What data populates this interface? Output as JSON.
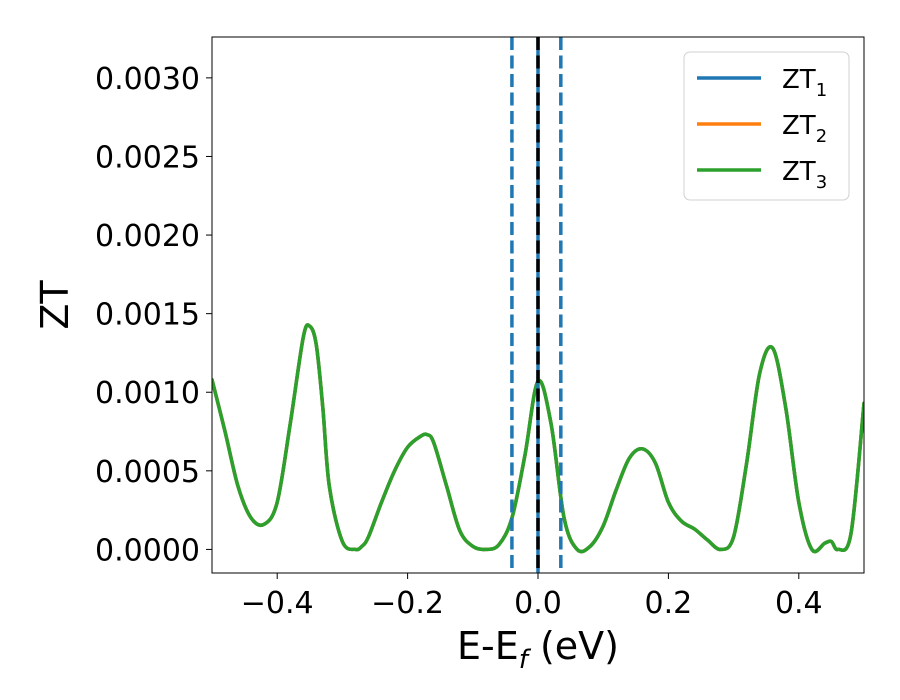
{
  "chart_data": {
    "type": "line",
    "xlabel": "E-E",
    "xlabel_sub": "f",
    "xlabel_unit": " (eV)",
    "ylabel": "ZT",
    "xlim": [
      -0.5,
      0.5
    ],
    "ylim": [
      -0.00015,
      0.00326
    ],
    "xticks": [
      -0.4,
      -0.2,
      0.0,
      0.2,
      0.4
    ],
    "xtick_labels": [
      "−0.4",
      "−0.2",
      "0.0",
      "0.2",
      "0.4"
    ],
    "yticks": [
      0.0,
      0.0005,
      0.001,
      0.0015,
      0.002,
      0.0025,
      0.003
    ],
    "ytick_labels": [
      "0.0000",
      "0.0005",
      "0.0010",
      "0.0015",
      "0.0020",
      "0.0025",
      "0.0030"
    ],
    "grid": false,
    "legend_position": "top-right",
    "vlines": [
      {
        "x": -0.04,
        "style": "dashed",
        "color": "#1f77b4"
      },
      {
        "x": 0.035,
        "style": "dashed",
        "color": "#1f77b4"
      },
      {
        "x": 0.0,
        "style": "solid",
        "color": "#1f77b4"
      },
      {
        "x": 0.0,
        "style": "dashed",
        "color": "#000000"
      }
    ],
    "series": [
      {
        "name": "ZT",
        "sub": "1",
        "color": "#1f77b4",
        "x": [
          -0.5,
          -0.48,
          -0.46,
          -0.44,
          -0.42,
          -0.4,
          -0.38,
          -0.36,
          -0.35,
          -0.34,
          -0.33,
          -0.32,
          -0.3,
          -0.28,
          -0.27,
          -0.26,
          -0.24,
          -0.22,
          -0.2,
          -0.18,
          -0.17,
          -0.16,
          -0.14,
          -0.12,
          -0.1,
          -0.08,
          -0.06,
          -0.04,
          -0.02,
          0.0,
          0.02,
          0.04,
          0.06,
          0.08,
          0.1,
          0.12,
          0.14,
          0.16,
          0.18,
          0.2,
          0.22,
          0.24,
          0.26,
          0.28,
          0.3,
          0.32,
          0.34,
          0.36,
          0.38,
          0.4,
          0.42,
          0.44,
          0.45,
          0.46,
          0.48,
          0.5
        ],
        "y": [
          0.00108,
          0.00075,
          0.0004,
          0.0002,
          0.00016,
          0.0003,
          0.0008,
          0.00135,
          0.00142,
          0.0013,
          0.0009,
          0.0004,
          5e-05,
          0.0,
          2e-05,
          8e-05,
          0.0003,
          0.0005,
          0.00065,
          0.00072,
          0.00073,
          0.00068,
          0.0004,
          0.00012,
          2e-05,
          0.0,
          3e-05,
          0.0002,
          0.0006,
          0.00107,
          0.0008,
          0.0002,
          0.0,
          2e-05,
          0.00015,
          0.00038,
          0.00058,
          0.00064,
          0.00055,
          0.0003,
          0.00018,
          0.00013,
          6e-05,
          0.0,
          8e-05,
          0.00055,
          0.00112,
          0.00128,
          0.0009,
          0.0003,
          0.0,
          4e-05,
          5e-05,
          0.0,
          0.0001,
          0.00093
        ]
      },
      {
        "name": "ZT",
        "sub": "2",
        "color": "#ff7f0e",
        "x": [
          -0.5,
          -0.48,
          -0.46,
          -0.44,
          -0.42,
          -0.4,
          -0.38,
          -0.36,
          -0.35,
          -0.34,
          -0.33,
          -0.32,
          -0.3,
          -0.28,
          -0.27,
          -0.26,
          -0.24,
          -0.22,
          -0.2,
          -0.18,
          -0.17,
          -0.16,
          -0.14,
          -0.12,
          -0.1,
          -0.08,
          -0.06,
          -0.04,
          -0.02,
          0.0,
          0.02,
          0.04,
          0.06,
          0.08,
          0.1,
          0.12,
          0.14,
          0.16,
          0.18,
          0.2,
          0.22,
          0.24,
          0.26,
          0.28,
          0.3,
          0.32,
          0.34,
          0.36,
          0.38,
          0.4,
          0.42,
          0.44,
          0.45,
          0.46,
          0.48,
          0.5
        ],
        "y": [
          0.00108,
          0.00075,
          0.0004,
          0.0002,
          0.00016,
          0.0003,
          0.0008,
          0.00135,
          0.00142,
          0.0013,
          0.0009,
          0.0004,
          5e-05,
          0.0,
          2e-05,
          8e-05,
          0.0003,
          0.0005,
          0.00065,
          0.00072,
          0.00073,
          0.00068,
          0.0004,
          0.00012,
          2e-05,
          0.0,
          3e-05,
          0.0002,
          0.0006,
          0.00107,
          0.0008,
          0.0002,
          0.0,
          2e-05,
          0.00015,
          0.00038,
          0.00058,
          0.00064,
          0.00055,
          0.0003,
          0.00018,
          0.00013,
          6e-05,
          0.0,
          8e-05,
          0.00055,
          0.00112,
          0.00128,
          0.0009,
          0.0003,
          0.0,
          4e-05,
          5e-05,
          0.0,
          0.0001,
          0.00093
        ]
      },
      {
        "name": "ZT",
        "sub": "3",
        "color": "#2ca02c",
        "x": [
          -0.5,
          -0.48,
          -0.46,
          -0.44,
          -0.42,
          -0.4,
          -0.38,
          -0.36,
          -0.35,
          -0.34,
          -0.33,
          -0.32,
          -0.3,
          -0.28,
          -0.27,
          -0.26,
          -0.24,
          -0.22,
          -0.2,
          -0.18,
          -0.17,
          -0.16,
          -0.14,
          -0.12,
          -0.1,
          -0.08,
          -0.06,
          -0.04,
          -0.02,
          0.0,
          0.02,
          0.04,
          0.06,
          0.08,
          0.1,
          0.12,
          0.14,
          0.16,
          0.18,
          0.2,
          0.22,
          0.24,
          0.26,
          0.28,
          0.3,
          0.32,
          0.34,
          0.36,
          0.38,
          0.4,
          0.42,
          0.44,
          0.45,
          0.46,
          0.48,
          0.5
        ],
        "y": [
          0.00108,
          0.00075,
          0.0004,
          0.0002,
          0.00016,
          0.0003,
          0.0008,
          0.00135,
          0.00142,
          0.0013,
          0.0009,
          0.0004,
          5e-05,
          0.0,
          2e-05,
          8e-05,
          0.0003,
          0.0005,
          0.00065,
          0.00072,
          0.00073,
          0.00068,
          0.0004,
          0.00012,
          2e-05,
          0.0,
          3e-05,
          0.0002,
          0.0006,
          0.00107,
          0.0008,
          0.0002,
          0.0,
          2e-05,
          0.00015,
          0.00038,
          0.00058,
          0.00064,
          0.00055,
          0.0003,
          0.00018,
          0.00013,
          6e-05,
          0.0,
          8e-05,
          0.00055,
          0.00112,
          0.00128,
          0.0009,
          0.0003,
          0.0,
          4e-05,
          5e-05,
          0.0,
          0.0001,
          0.00093
        ]
      }
    ]
  }
}
